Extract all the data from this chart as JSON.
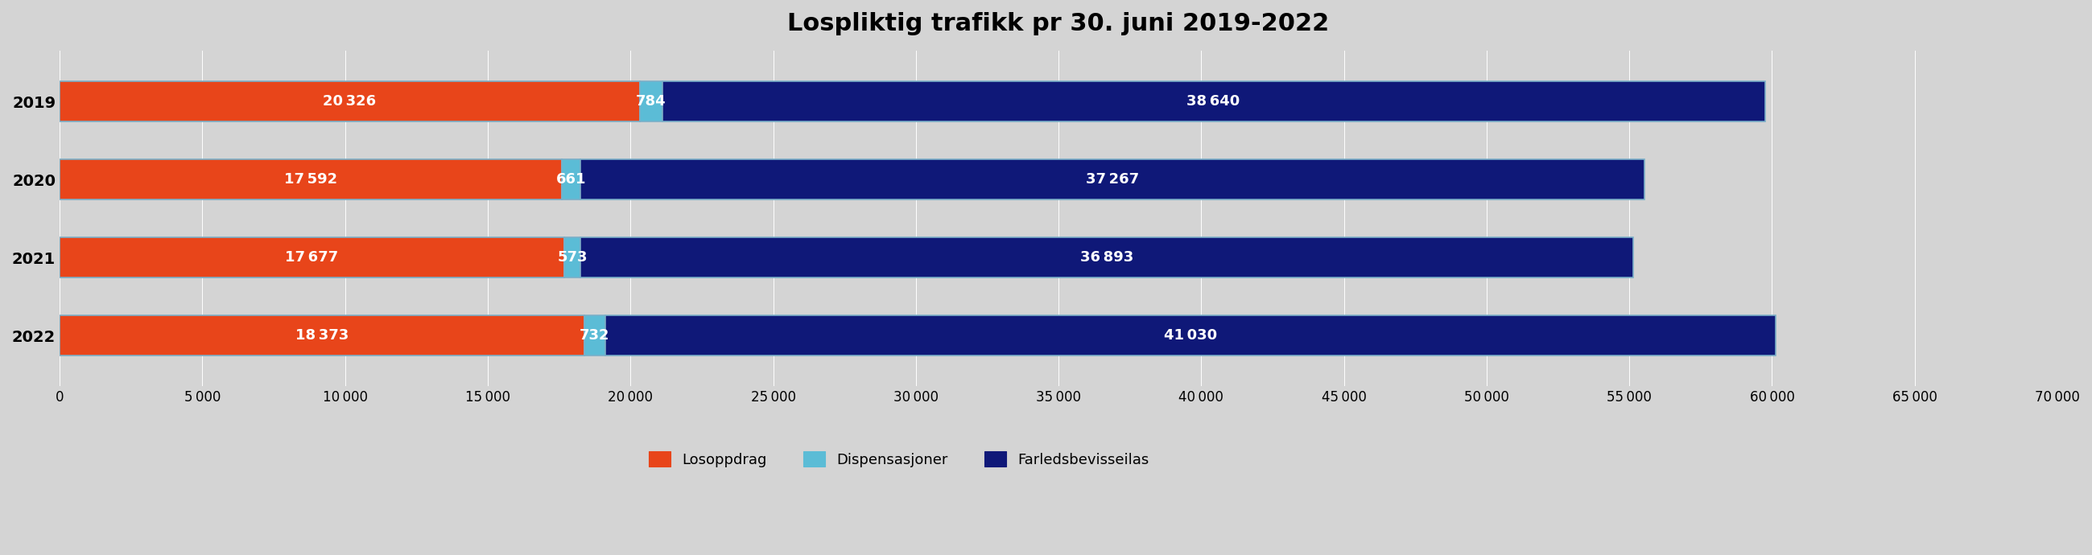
{
  "title": "Lospliktig trafikk pr 30. juni 2019-2022",
  "years": [
    "2022",
    "2021",
    "2020",
    "2019"
  ],
  "losoppdrag": [
    18373,
    17677,
    17592,
    20326
  ],
  "dispensasjoner": [
    732,
    573,
    661,
    784
  ],
  "farledsbevisseilas": [
    41030,
    36893,
    37267,
    38640
  ],
  "color_losoppdrag": "#E8451A",
  "color_dispensasjoner": "#5BBCD6",
  "color_farledsbevisseilas": "#0F1878",
  "color_background": "#D4D4D4",
  "color_bar_edge": "#7AAFC8",
  "xlim": [
    0,
    70000
  ],
  "xticks": [
    0,
    5000,
    10000,
    15000,
    20000,
    25000,
    30000,
    35000,
    40000,
    45000,
    50000,
    55000,
    60000,
    65000,
    70000
  ],
  "legend_labels": [
    "Losoppdrag",
    "Dispensasjoner",
    "Farledsbevisseilas"
  ],
  "title_fontsize": 22,
  "bar_label_fontsize": 13,
  "tick_label_fontsize": 12,
  "year_label_fontsize": 14,
  "bar_height": 0.52
}
